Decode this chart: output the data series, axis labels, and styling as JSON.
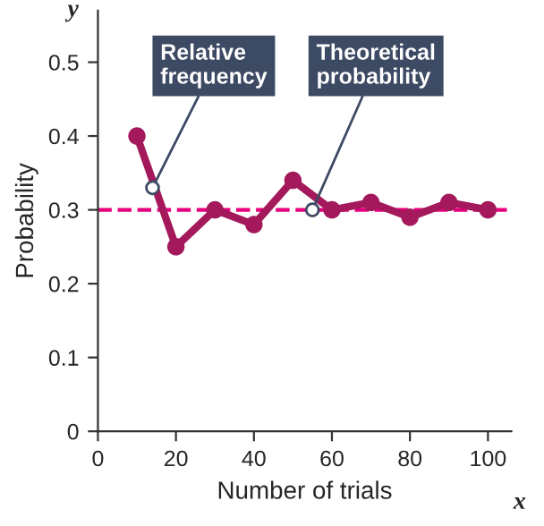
{
  "chart_data": {
    "type": "line",
    "xlabel": "Number of trials",
    "ylabel": "Probability",
    "x": [
      10,
      20,
      30,
      40,
      50,
      60,
      70,
      80,
      90,
      100
    ],
    "series": [
      {
        "color": "#a3195b",
        "values": [
          0.4,
          0.25,
          0.3,
          0.28,
          0.34,
          0.3,
          0.31,
          0.29,
          0.31,
          0.3
        ]
      }
    ],
    "marker": "circle",
    "line_style": "solid",
    "grid": false,
    "xlim": [
      0,
      106
    ],
    "ylim": [
      0,
      0.57
    ],
    "xticks": [
      0,
      20,
      40,
      60,
      80,
      100
    ],
    "yticks": [
      0,
      0.1,
      0.2,
      0.3,
      0.4,
      0.5
    ],
    "ref_lines": [
      {
        "axis": "y",
        "value": 0.3,
        "color": "#e6007e",
        "line_style": "dashed"
      }
    ],
    "annotations": [
      {
        "text": "Relative\nfrequency",
        "x": 14,
        "y": 0.33
      },
      {
        "text": "Theoretical\nprobability",
        "x": 55,
        "y": 0.3
      },
      "x",
      "y"
    ]
  }
}
